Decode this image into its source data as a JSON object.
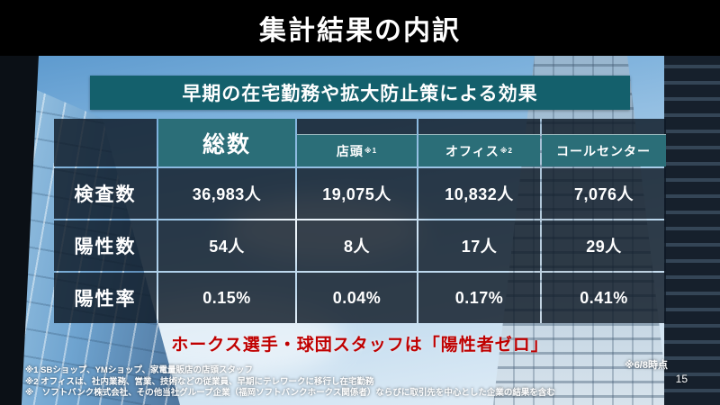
{
  "title": "集計結果の内訳",
  "banner": "早期の在宅勤務や拡大防止策による効果",
  "table": {
    "columns": [
      {
        "label": "総数",
        "note": ""
      },
      {
        "label": "店頭",
        "note": "※1"
      },
      {
        "label": "オフィス",
        "note": "※2"
      },
      {
        "label": "コールセンター",
        "note": ""
      }
    ],
    "rows": [
      {
        "label": "検査数",
        "values": [
          "36,983人",
          "19,075人",
          "10,832人",
          "7,076人"
        ]
      },
      {
        "label": "陽性数",
        "values": [
          "54人",
          "8人",
          "17人",
          "29人"
        ]
      },
      {
        "label": "陽性率",
        "values": [
          "0.15%",
          "0.04%",
          "0.17%",
          "0.41%"
        ]
      }
    ]
  },
  "highlight": "ホークス選手・球団スタッフは「陽性者ゼロ」",
  "footnotes": [
    "※1 SBショップ、YMショップ、家電量販店の店頭スタッフ",
    "※2 オフィスは、社内業務、営業、技術などの従業員、早期にテレワークに移行し在宅勤務",
    "※　ソフトバンク株式会社、その他当社グループ企業（福岡ソフトバンクホークス関係者）ならびに取引先を中心とした企業の結果を含む"
  ],
  "as_of": "※6/8時点",
  "page_number": "15",
  "colors": {
    "title_bar": "#000000",
    "banner_teal": "#14606c",
    "header_teal": "#2b6e78",
    "cell_dark": "#0d1824",
    "highlight_red": "#c00000"
  }
}
